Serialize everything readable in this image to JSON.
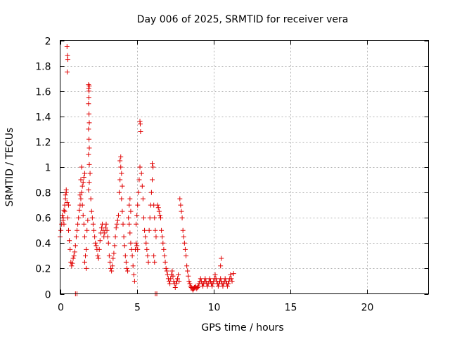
{
  "chart_data": {
    "type": "scatter",
    "title": "Day 006 of 2025, SRMTID for receiver vera",
    "xlabel": "GPS time / hours",
    "ylabel": "SRMTID / TECUs",
    "xlim": [
      0,
      24
    ],
    "ylim": [
      0,
      2
    ],
    "x_ticks": [
      0,
      5,
      10,
      15,
      20
    ],
    "x_tick_labels": [
      "0",
      "5",
      "10",
      "15",
      "20"
    ],
    "y_ticks": [
      0,
      0.2,
      0.4,
      0.6,
      0.8,
      1,
      1.2,
      1.4,
      1.6,
      1.8,
      2
    ],
    "y_tick_labels": [
      "0",
      "0.2",
      "0.4",
      "0.6",
      "0.8",
      "1",
      "1.2",
      "1.4",
      "1.6",
      "1.8",
      "2"
    ],
    "grid": true,
    "marker": "plus",
    "color": "#e00000",
    "series": [
      {
        "name": "SRMTID",
        "points": [
          [
            0.0,
            0.45
          ],
          [
            0.05,
            0.5
          ],
          [
            0.1,
            0.55
          ],
          [
            0.15,
            0.62
          ],
          [
            0.2,
            0.58
          ],
          [
            0.25,
            0.66
          ],
          [
            0.3,
            0.7
          ],
          [
            0.35,
            0.75
          ],
          [
            0.4,
            0.8
          ],
          [
            0.45,
            0.72
          ],
          [
            0.5,
            0.6
          ],
          [
            0.55,
            0.5
          ],
          [
            0.6,
            0.42
          ],
          [
            0.65,
            0.35
          ],
          [
            0.7,
            0.25
          ],
          [
            0.75,
            0.22
          ],
          [
            0.8,
            0.24
          ],
          [
            0.85,
            0.28
          ],
          [
            0.9,
            0.3
          ],
          [
            0.95,
            0.33
          ],
          [
            1.0,
            0.38
          ],
          [
            1.05,
            0.45
          ],
          [
            1.1,
            0.5
          ],
          [
            1.15,
            0.55
          ],
          [
            0.45,
            1.95
          ],
          [
            0.48,
            1.88
          ],
          [
            0.5,
            1.85
          ],
          [
            0.46,
            1.75
          ],
          [
            0.3,
            0.65
          ],
          [
            0.35,
            0.78
          ],
          [
            0.4,
            0.82
          ],
          [
            0.25,
            0.55
          ],
          [
            0.2,
            0.6
          ],
          [
            0.55,
            0.7
          ],
          [
            1.0,
            0.0
          ],
          [
            1.1,
            0.0
          ],
          [
            1.2,
            0.6
          ],
          [
            1.25,
            0.66
          ],
          [
            1.3,
            0.7
          ],
          [
            1.35,
            0.75
          ],
          [
            1.4,
            0.8
          ],
          [
            1.45,
            0.85
          ],
          [
            1.5,
            0.88
          ],
          [
            1.55,
            0.92
          ],
          [
            1.6,
            0.95
          ],
          [
            1.3,
            0.78
          ],
          [
            1.35,
            0.9
          ],
          [
            1.4,
            1.0
          ],
          [
            1.45,
            0.7
          ],
          [
            1.5,
            0.62
          ],
          [
            1.55,
            0.55
          ],
          [
            1.6,
            0.45
          ],
          [
            1.65,
            0.3
          ],
          [
            1.7,
            0.2
          ],
          [
            1.6,
            0.25
          ],
          [
            1.7,
            0.35
          ],
          [
            1.75,
            0.5
          ],
          [
            1.8,
            0.58
          ],
          [
            1.85,
            1.65
          ],
          [
            1.86,
            1.62
          ],
          [
            1.88,
            1.6
          ],
          [
            1.9,
            1.64
          ],
          [
            1.87,
            1.55
          ],
          [
            1.85,
            1.5
          ],
          [
            1.88,
            1.42
          ],
          [
            1.9,
            1.35
          ],
          [
            1.85,
            1.3
          ],
          [
            1.88,
            1.22
          ],
          [
            1.9,
            1.15
          ],
          [
            1.85,
            1.1
          ],
          [
            1.9,
            1.02
          ],
          [
            1.95,
            0.95
          ],
          [
            1.9,
            0.88
          ],
          [
            1.85,
            0.82
          ],
          [
            2.0,
            0.75
          ],
          [
            2.05,
            0.65
          ],
          [
            2.1,
            0.6
          ],
          [
            2.15,
            0.55
          ],
          [
            2.2,
            0.5
          ],
          [
            2.25,
            0.45
          ],
          [
            2.3,
            0.4
          ],
          [
            2.35,
            0.38
          ],
          [
            2.4,
            0.35
          ],
          [
            2.45,
            0.3
          ],
          [
            2.5,
            0.28
          ],
          [
            2.55,
            0.35
          ],
          [
            2.6,
            0.42
          ],
          [
            2.65,
            0.48
          ],
          [
            2.7,
            0.52
          ],
          [
            2.75,
            0.55
          ],
          [
            2.8,
            0.5
          ],
          [
            2.85,
            0.45
          ],
          [
            2.9,
            0.48
          ],
          [
            2.95,
            0.52
          ],
          [
            3.0,
            0.55
          ],
          [
            3.05,
            0.5
          ],
          [
            3.1,
            0.45
          ],
          [
            3.15,
            0.4
          ],
          [
            3.2,
            0.3
          ],
          [
            3.25,
            0.25
          ],
          [
            3.3,
            0.2
          ],
          [
            3.35,
            0.18
          ],
          [
            3.4,
            0.22
          ],
          [
            3.45,
            0.28
          ],
          [
            3.5,
            0.32
          ],
          [
            3.55,
            0.38
          ],
          [
            3.6,
            0.45
          ],
          [
            3.65,
            0.52
          ],
          [
            3.7,
            0.55
          ],
          [
            3.75,
            0.58
          ],
          [
            3.8,
            0.62
          ],
          [
            3.85,
            0.8
          ],
          [
            3.9,
            0.9
          ],
          [
            3.95,
            1.0
          ],
          [
            3.9,
            1.05
          ],
          [
            3.95,
            1.08
          ],
          [
            4.0,
            0.95
          ],
          [
            4.05,
            0.85
          ],
          [
            4.0,
            0.75
          ],
          [
            4.05,
            0.65
          ],
          [
            4.1,
            0.55
          ],
          [
            4.15,
            0.45
          ],
          [
            4.2,
            0.38
          ],
          [
            4.25,
            0.3
          ],
          [
            4.3,
            0.25
          ],
          [
            4.35,
            0.2
          ],
          [
            4.4,
            0.18
          ],
          [
            4.45,
            0.6
          ],
          [
            4.5,
            0.7
          ],
          [
            4.55,
            0.75
          ],
          [
            4.6,
            0.65
          ],
          [
            4.5,
            0.55
          ],
          [
            4.55,
            0.48
          ],
          [
            4.6,
            0.4
          ],
          [
            4.65,
            0.35
          ],
          [
            4.7,
            0.3
          ],
          [
            4.75,
            0.22
          ],
          [
            4.8,
            0.15
          ],
          [
            4.85,
            0.1
          ],
          [
            4.9,
            0.35
          ],
          [
            4.95,
            0.4
          ],
          [
            5.0,
            0.38
          ],
          [
            5.05,
            0.35
          ],
          [
            4.95,
            0.55
          ],
          [
            5.0,
            0.62
          ],
          [
            5.05,
            0.7
          ],
          [
            5.1,
            0.8
          ],
          [
            5.15,
            0.9
          ],
          [
            5.2,
            1.0
          ],
          [
            5.2,
            1.36
          ],
          [
            5.22,
            1.34
          ],
          [
            5.24,
            1.28
          ],
          [
            5.3,
            0.95
          ],
          [
            5.35,
            0.85
          ],
          [
            5.4,
            0.75
          ],
          [
            5.45,
            0.6
          ],
          [
            5.5,
            0.5
          ],
          [
            5.55,
            0.45
          ],
          [
            5.6,
            0.4
          ],
          [
            5.65,
            0.35
          ],
          [
            5.7,
            0.3
          ],
          [
            5.75,
            0.25
          ],
          [
            5.8,
            0.5
          ],
          [
            5.85,
            0.6
          ],
          [
            5.9,
            0.7
          ],
          [
            5.95,
            0.8
          ],
          [
            6.0,
            0.9
          ],
          [
            6.05,
            1.0
          ],
          [
            6.0,
            1.03
          ],
          [
            6.1,
            0.7
          ],
          [
            6.15,
            0.6
          ],
          [
            6.2,
            0.5
          ],
          [
            6.25,
            0.45
          ],
          [
            6.1,
            0.3
          ],
          [
            6.15,
            0.25
          ],
          [
            6.2,
            0.0
          ],
          [
            6.3,
            0.0
          ],
          [
            6.35,
            0.7
          ],
          [
            6.4,
            0.68
          ],
          [
            6.45,
            0.65
          ],
          [
            6.5,
            0.62
          ],
          [
            6.55,
            0.6
          ],
          [
            6.6,
            0.5
          ],
          [
            6.65,
            0.45
          ],
          [
            6.7,
            0.4
          ],
          [
            6.75,
            0.35
          ],
          [
            6.8,
            0.3
          ],
          [
            6.85,
            0.25
          ],
          [
            6.9,
            0.2
          ],
          [
            6.95,
            0.18
          ],
          [
            7.0,
            0.15
          ],
          [
            7.05,
            0.12
          ],
          [
            7.1,
            0.1
          ],
          [
            7.15,
            0.08
          ],
          [
            7.2,
            0.12
          ],
          [
            7.25,
            0.15
          ],
          [
            7.3,
            0.18
          ],
          [
            7.35,
            0.14
          ],
          [
            7.4,
            0.1
          ],
          [
            7.45,
            0.08
          ],
          [
            7.5,
            0.05
          ],
          [
            7.55,
            0.08
          ],
          [
            7.6,
            0.1
          ],
          [
            7.65,
            0.12
          ],
          [
            7.7,
            0.15
          ],
          [
            7.75,
            0.1
          ],
          [
            7.8,
            0.75
          ],
          [
            7.85,
            0.7
          ],
          [
            7.9,
            0.65
          ],
          [
            7.95,
            0.6
          ],
          [
            8.0,
            0.5
          ],
          [
            8.05,
            0.45
          ],
          [
            8.1,
            0.4
          ],
          [
            8.15,
            0.35
          ],
          [
            8.2,
            0.3
          ],
          [
            8.25,
            0.22
          ],
          [
            8.3,
            0.18
          ],
          [
            8.35,
            0.14
          ],
          [
            8.4,
            0.1
          ],
          [
            8.45,
            0.08
          ],
          [
            8.5,
            0.06
          ],
          [
            8.55,
            0.05
          ],
          [
            8.6,
            0.04
          ],
          [
            8.65,
            0.03
          ],
          [
            8.7,
            0.04
          ],
          [
            8.75,
            0.05
          ],
          [
            8.8,
            0.06
          ],
          [
            8.85,
            0.05
          ],
          [
            8.9,
            0.04
          ],
          [
            8.95,
            0.05
          ],
          [
            9.0,
            0.06
          ],
          [
            9.05,
            0.08
          ],
          [
            9.1,
            0.1
          ],
          [
            9.15,
            0.12
          ],
          [
            9.2,
            0.1
          ],
          [
            9.25,
            0.08
          ],
          [
            9.3,
            0.06
          ],
          [
            9.35,
            0.08
          ],
          [
            9.4,
            0.1
          ],
          [
            9.45,
            0.12
          ],
          [
            9.5,
            0.1
          ],
          [
            9.55,
            0.08
          ],
          [
            9.6,
            0.06
          ],
          [
            9.65,
            0.08
          ],
          [
            9.7,
            0.1
          ],
          [
            9.75,
            0.12
          ],
          [
            9.8,
            0.1
          ],
          [
            9.85,
            0.08
          ],
          [
            9.9,
            0.06
          ],
          [
            9.95,
            0.08
          ],
          [
            10.0,
            0.1
          ],
          [
            10.05,
            0.12
          ],
          [
            10.1,
            0.15
          ],
          [
            10.15,
            0.12
          ],
          [
            10.2,
            0.1
          ],
          [
            10.25,
            0.08
          ],
          [
            10.3,
            0.06
          ],
          [
            10.35,
            0.08
          ],
          [
            10.4,
            0.1
          ],
          [
            10.45,
            0.12
          ],
          [
            10.5,
            0.1
          ],
          [
            10.55,
            0.08
          ],
          [
            10.6,
            0.06
          ],
          [
            10.65,
            0.08
          ],
          [
            10.7,
            0.1
          ],
          [
            10.75,
            0.12
          ],
          [
            10.8,
            0.1
          ],
          [
            10.85,
            0.08
          ],
          [
            10.9,
            0.06
          ],
          [
            10.95,
            0.08
          ],
          [
            11.0,
            0.1
          ],
          [
            11.05,
            0.12
          ],
          [
            11.1,
            0.15
          ],
          [
            11.15,
            0.12
          ],
          [
            11.2,
            0.1
          ],
          [
            10.5,
            0.28
          ],
          [
            10.45,
            0.22
          ],
          [
            11.3,
            0.16
          ]
        ]
      }
    ]
  }
}
